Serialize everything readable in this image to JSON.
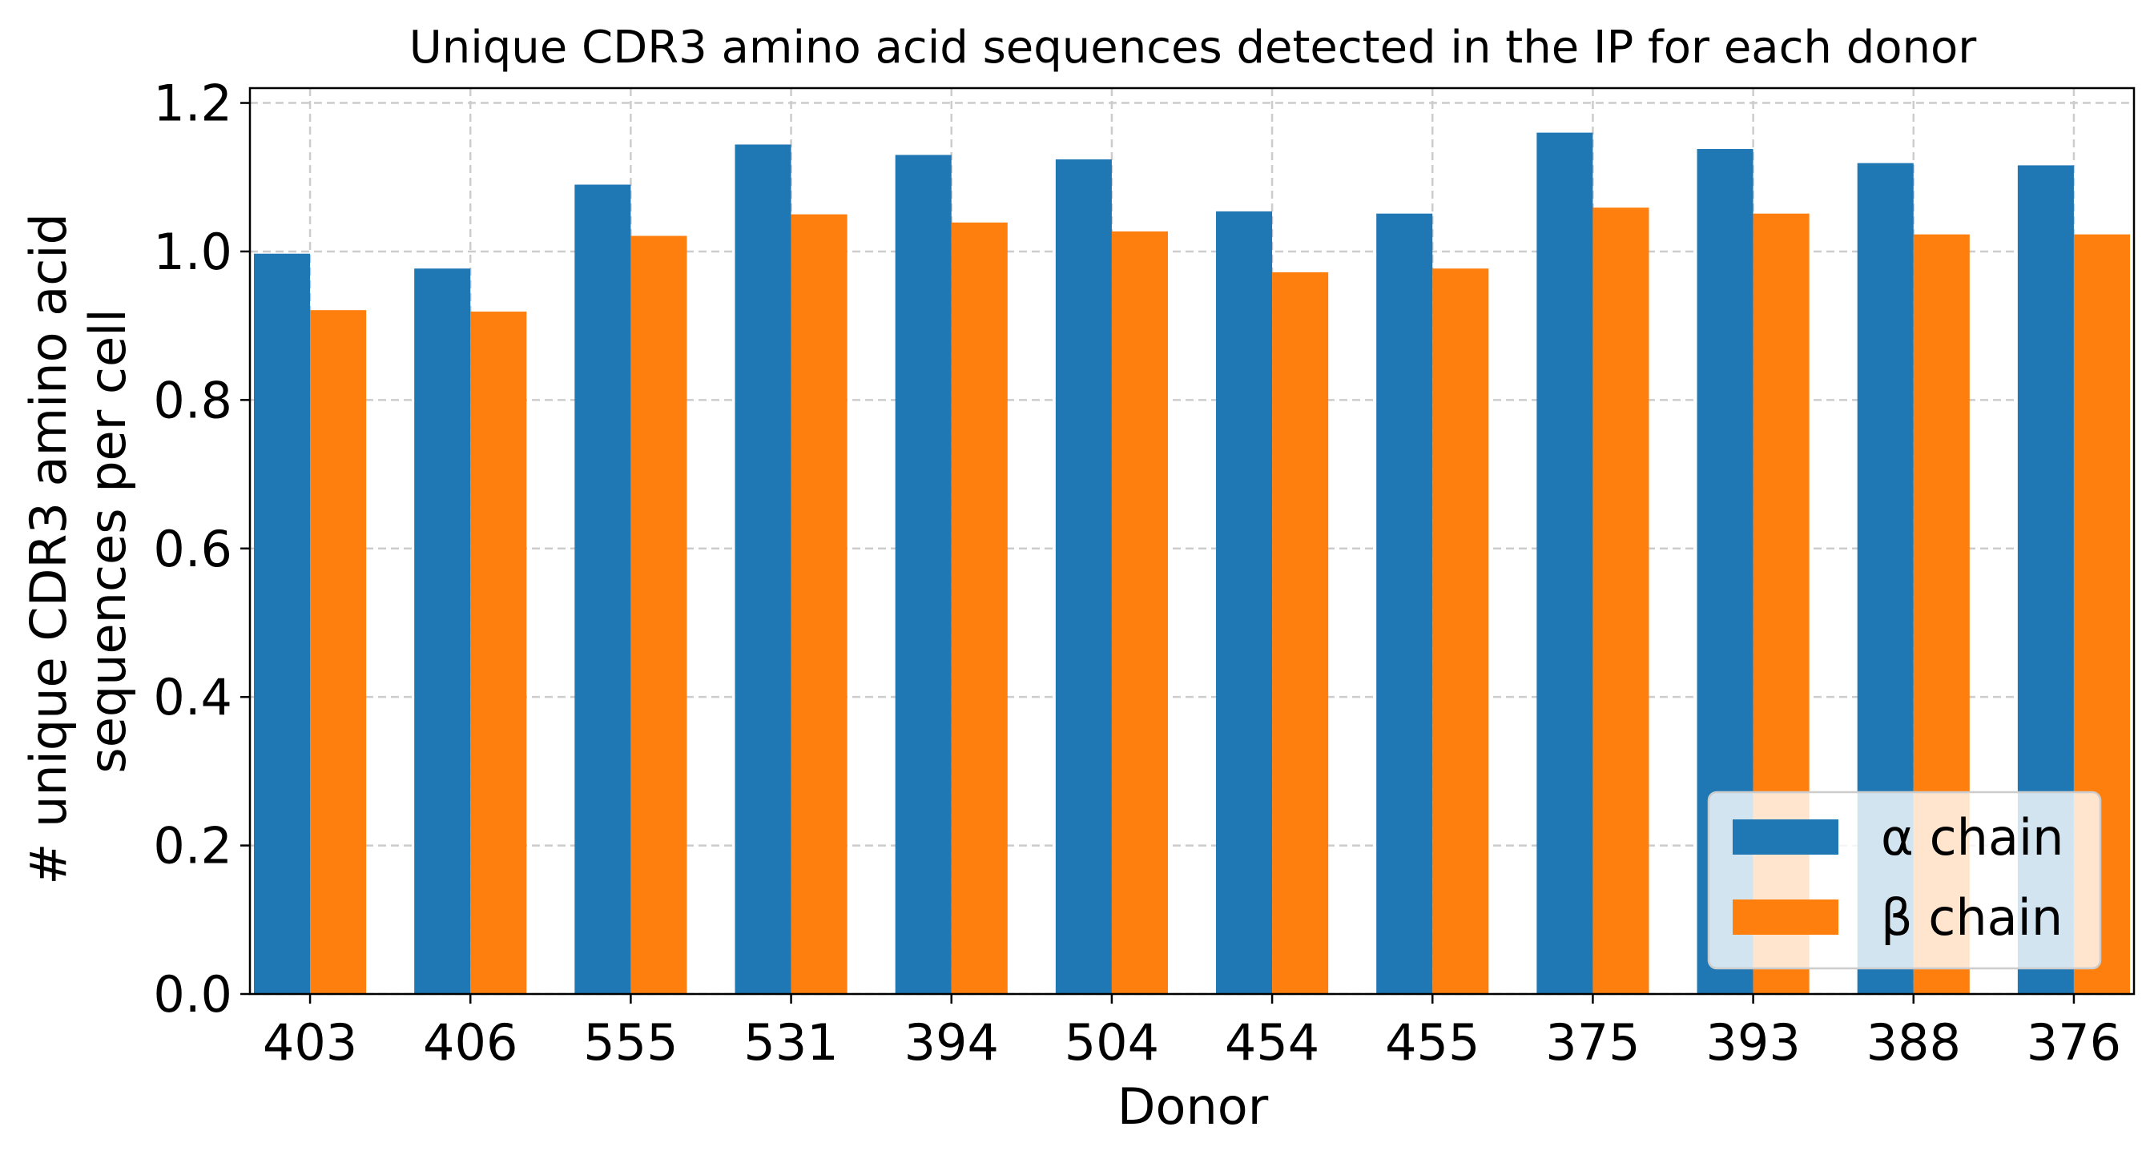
{
  "chart_data": {
    "type": "bar",
    "title": "Unique CDR3 amino acid sequences detected in the IP for each donor",
    "xlabel": "Donor",
    "ylabel": [
      "# unique CDR3 amino acid",
      "sequences per cell"
    ],
    "ylim": [
      0,
      1.22
    ],
    "yticks": [
      "0.0",
      "0.2",
      "0.4",
      "0.6",
      "0.8",
      "1.0",
      "1.2"
    ],
    "grid": true,
    "legend_position": "lower-right",
    "categories": [
      "403",
      "406",
      "555",
      "531",
      "394",
      "504",
      "454",
      "455",
      "375",
      "393",
      "388",
      "376"
    ],
    "series": [
      {
        "name": "α chain",
        "color": "#1f77b4",
        "values": [
          0.997,
          0.977,
          1.09,
          1.144,
          1.13,
          1.124,
          1.054,
          1.051,
          1.16,
          1.138,
          1.119,
          1.116
        ]
      },
      {
        "name": "β chain",
        "color": "#ff7f0e",
        "values": [
          0.921,
          0.919,
          1.021,
          1.05,
          1.039,
          1.027,
          0.972,
          0.977,
          1.059,
          1.051,
          1.023,
          1.023
        ]
      }
    ]
  }
}
